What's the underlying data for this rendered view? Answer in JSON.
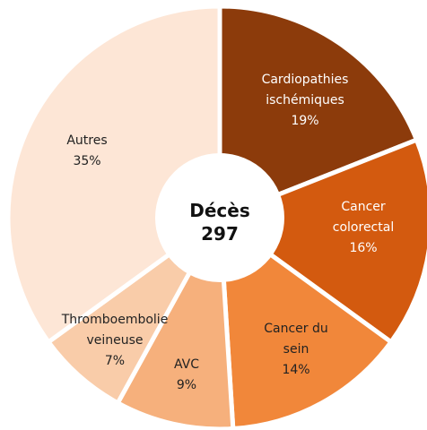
{
  "chart_data": {
    "type": "donut",
    "categories": [
      "Cardiopathies ischémiques",
      "Cancer colorectal",
      "Cancer du sein",
      "AVC",
      "Thromboembolie veineuse",
      "Autres"
    ],
    "values": [
      19,
      16,
      14,
      9,
      7,
      35
    ],
    "value_labels": [
      "19%",
      "16%",
      "14%",
      "9%",
      "7%",
      "35%"
    ],
    "colors": [
      "#8c3b0b",
      "#d35a0f",
      "#f1873a",
      "#f6b07c",
      "#f9cca9",
      "#fde6d6"
    ],
    "center_title": "Décès",
    "center_value": 297
  }
}
